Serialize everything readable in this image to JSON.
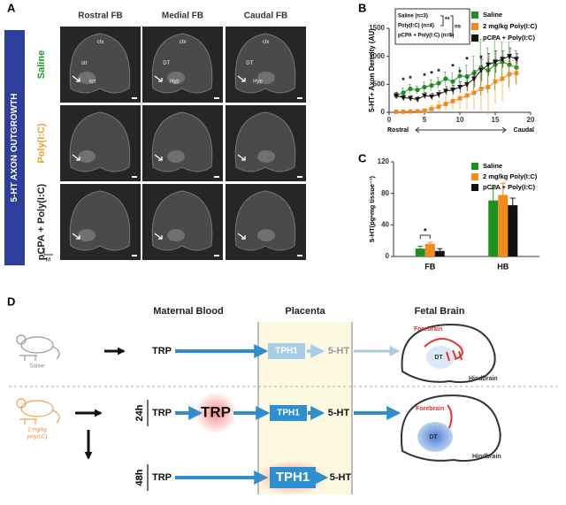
{
  "panel_a": {
    "label": "A",
    "banner": "5-HT AXON OUTGROWTH",
    "columns": [
      "Rostral FB",
      "Medial FB",
      "Caudal FB"
    ],
    "rows": [
      "Saline",
      "Poly(I:C)",
      "pCPA + Poly(I:C)"
    ],
    "saline_labels": [
      [
        "ctx",
        "str",
        "spt"
      ],
      [
        "ctx",
        "DT",
        "Hyp"
      ],
      [
        "ctx",
        "DT",
        "Hyp"
      ]
    ],
    "orientation": "M"
  },
  "chart_data": [
    {
      "type": "line",
      "label": "B",
      "y_label": "5-HT+ Axon Density (AU)",
      "x_start_label": "Rostral",
      "x_end_label": "Caudal",
      "x": [
        1,
        2,
        3,
        4,
        5,
        6,
        7,
        8,
        9,
        10,
        11,
        12,
        13,
        14,
        15,
        16,
        17,
        18
      ],
      "series": [
        {
          "name": "Saline",
          "color": "#1f8f1f",
          "marker": "circle",
          "values": [
            300,
            350,
            420,
            400,
            450,
            480,
            520,
            600,
            550,
            650,
            640,
            700,
            800,
            750,
            850,
            900,
            850,
            800
          ],
          "errors": [
            60,
            80,
            80,
            70,
            90,
            100,
            100,
            120,
            150,
            150,
            200,
            300,
            500,
            400,
            450,
            350,
            400,
            300
          ]
        },
        {
          "name": "2 mg/kg Poly(I:C)",
          "color": "#f28a1e",
          "marker": "square",
          "values": [
            10,
            10,
            15,
            20,
            30,
            60,
            100,
            150,
            200,
            250,
            300,
            350,
            420,
            450,
            550,
            600,
            680,
            700
          ],
          "errors": [
            10,
            10,
            10,
            15,
            30,
            60,
            100,
            120,
            150,
            200,
            250,
            300,
            400,
            500,
            400,
            400,
            300,
            200
          ]
        },
        {
          "name": "pCPA + Poly(I:C)",
          "color": "#111111",
          "marker": "triangle-down",
          "values": [
            300,
            260,
            250,
            230,
            300,
            280,
            320,
            380,
            400,
            450,
            500,
            600,
            750,
            850,
            900,
            950,
            1000,
            950
          ],
          "errors": [
            60,
            50,
            50,
            50,
            60,
            60,
            70,
            80,
            80,
            100,
            120,
            150,
            200,
            200,
            200,
            150,
            150,
            100
          ]
        }
      ],
      "inset": [
        "Saline (n=3)",
        "Poly(I:C) (n=4)",
        "pCPA + Poly(I:C) (n=5)"
      ],
      "inset_stats": [
        "**",
        "ns"
      ],
      "annotations": [
        {
          "x": 2,
          "y": 560,
          "text": "*"
        },
        {
          "x": 3,
          "y": 590,
          "text": "*"
        },
        {
          "x": 5,
          "y": 640,
          "text": "*"
        },
        {
          "x": 6,
          "y": 680,
          "text": "*"
        },
        {
          "x": 7,
          "y": 720,
          "text": "*"
        },
        {
          "x": 9,
          "y": 800,
          "text": "*"
        },
        {
          "x": 10,
          "y": 700,
          "text": "*"
        },
        {
          "x": 11,
          "y": 930,
          "text": "*"
        },
        {
          "x": 13,
          "y": 950,
          "text": "*"
        }
      ],
      "xlim": [
        0,
        20
      ],
      "xticks": [
        0,
        5,
        10,
        15,
        20
      ],
      "ylim": [
        0,
        1500
      ],
      "yticks": [
        0,
        500,
        1000,
        1500
      ]
    },
    {
      "type": "bar",
      "label": "C",
      "y_label": "5-HT(pg•mg tissue⁻¹)",
      "categories": [
        "FB",
        "HB"
      ],
      "series": [
        {
          "name": "Saline",
          "color": "#1f8f1f",
          "values": [
            10,
            71
          ],
          "errors": [
            3,
            15
          ]
        },
        {
          "name": "2 mg/kg Poly(I:C)",
          "color": "#f28a1e",
          "values": [
            16,
            78
          ],
          "errors": [
            2,
            15
          ]
        },
        {
          "name": "pCPA + Poly(I:C)",
          "color": "#111111",
          "values": [
            7,
            65
          ],
          "errors": [
            3,
            9
          ]
        }
      ],
      "significance": "*",
      "ylim": [
        0,
        120
      ],
      "yticks": [
        0,
        40,
        80,
        120
      ]
    }
  ],
  "panel_d": {
    "label": "D",
    "headers": [
      "Maternal Blood",
      "Placenta",
      "Fetal Brain"
    ],
    "saline": {
      "treatment": "Saline",
      "trp": "TRP",
      "tph1": "TPH1",
      "serotonin": "5-HT"
    },
    "polyic": {
      "treatment": [
        "2 mg/kg",
        "poly(I:C)"
      ],
      "rows": [
        {
          "time": "24h",
          "trp": "TRP",
          "trp_maternal": "TRP",
          "tph1": "TPH1",
          "serotonin": "5-HT"
        },
        {
          "time": "48h",
          "trp": "TRP",
          "tph1": "TPH1",
          "serotonin": "5-HT"
        }
      ]
    },
    "brains": [
      {
        "forebrain": "Forebrain",
        "dt": "DT",
        "hindbrain": "Hindbrain"
      },
      {
        "forebrain": "Forebrain",
        "dt": "DT",
        "hindbrain": "Hindbrain"
      }
    ]
  }
}
